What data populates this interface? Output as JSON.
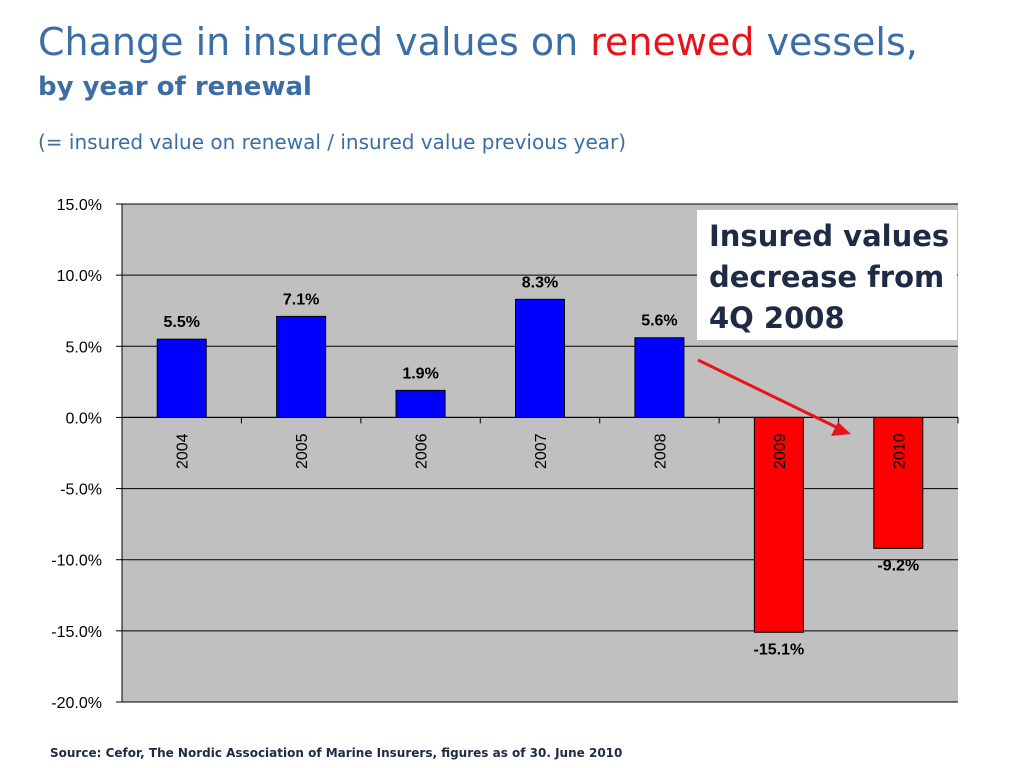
{
  "title": {
    "prefix": "Change in insured values on ",
    "highlight": "renewed",
    "suffix": " vessels",
    "comma": ",",
    "line2": "by year of renewal",
    "formula": "(= insured value on renewal / insured value previous year)"
  },
  "colors": {
    "title": "#3a6ea5",
    "highlight": "#e8141b",
    "positive_bar": "#0000ff",
    "negative_bar": "#ff0000",
    "plot_bg": "#c0c0c0",
    "arrow": "#e8141b"
  },
  "callout": {
    "text": "Insured values\ndecrease from\n4Q 2008"
  },
  "source": "Source: Cefor, The Nordic Association of Marine Insurers, figures as of 30. June 2010",
  "chart_data": {
    "type": "bar",
    "categories": [
      "2004",
      "2005",
      "2006",
      "2007",
      "2008",
      "2009",
      "2010"
    ],
    "values": [
      5.5,
      7.1,
      1.9,
      8.3,
      5.6,
      -15.1,
      -9.2
    ],
    "data_labels": [
      "5.5%",
      "7.1%",
      "1.9%",
      "8.3%",
      "5.6%",
      "-15.1%",
      "-9.2%"
    ],
    "ylim": [
      -20,
      15
    ],
    "yticks": [
      15,
      10,
      5,
      0,
      -5,
      -10,
      -15,
      -20
    ],
    "ytick_labels": [
      "15.0%",
      "10.0%",
      "5.0%",
      "0.0%",
      "-5.0%",
      "-10.0%",
      "-15.0%",
      "-20.0%"
    ],
    "grid": true,
    "xlabel": "",
    "ylabel": "",
    "legend": "none"
  }
}
